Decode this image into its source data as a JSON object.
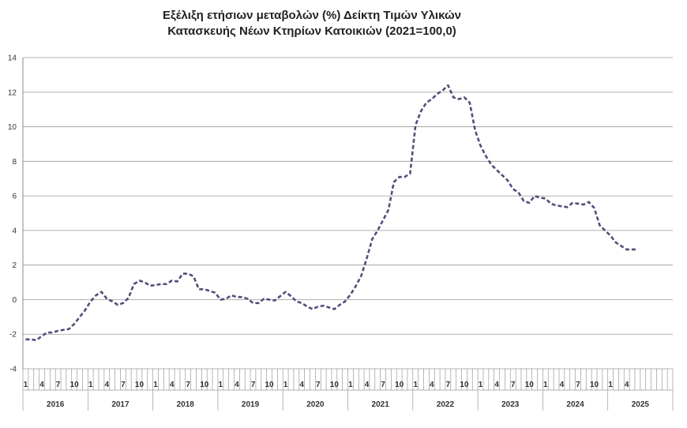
{
  "chart_data": {
    "type": "line",
    "title_line1": "Εξέλιξη ετήσιων μεταβολών (%) Δείκτη Τιμών Υλικών",
    "title_line2": "Κατασκευής Νέων Κτηρίων Κατοικιών (2021=100,0)",
    "ylim": [
      -4,
      14
    ],
    "yticks": [
      -4,
      -2,
      0,
      2,
      4,
      6,
      8,
      10,
      12,
      14
    ],
    "grid": true,
    "legend": "none",
    "line_color": "#5a4a7a",
    "line_style": "dashed",
    "years": [
      "2016",
      "2017",
      "2018",
      "2019",
      "2020",
      "2021",
      "2022",
      "2023",
      "2024",
      "2025"
    ],
    "month_tick_labels": [
      "1",
      "4",
      "7",
      "10"
    ],
    "start": "2016-01",
    "series": [
      {
        "values": [
          -2.3,
          -2.3,
          -2.35,
          -2.1,
          -1.9,
          -1.9,
          -1.8,
          -1.75,
          -1.7,
          -1.4,
          -1.0,
          -0.6,
          -0.1,
          0.25,
          0.45,
          0.05,
          -0.1,
          -0.3,
          -0.2,
          0.1,
          0.9,
          1.1,
          1.0,
          0.8,
          0.85,
          0.9,
          0.9,
          1.1,
          1.05,
          1.5,
          1.5,
          1.35,
          0.6,
          0.6,
          0.5,
          0.4,
          0.0,
          0.05,
          0.25,
          0.15,
          0.15,
          0.05,
          -0.2,
          -0.2,
          0.05,
          0.0,
          -0.05,
          0.2,
          0.45,
          0.2,
          -0.1,
          -0.2,
          -0.4,
          -0.55,
          -0.4,
          -0.35,
          -0.45,
          -0.55,
          -0.3,
          -0.1,
          0.3,
          0.8,
          1.4,
          2.4,
          3.5,
          4.0,
          4.6,
          5.2,
          6.8,
          7.1,
          7.1,
          7.3,
          10.1,
          10.9,
          11.4,
          11.6,
          11.9,
          12.1,
          12.4,
          11.7,
          11.6,
          11.7,
          11.4,
          9.8,
          8.9,
          8.3,
          7.8,
          7.5,
          7.2,
          6.9,
          6.4,
          6.2,
          5.7,
          5.6,
          6.0,
          5.9,
          5.85,
          5.55,
          5.45,
          5.4,
          5.35,
          5.6,
          5.55,
          5.5,
          5.65,
          5.3,
          4.3,
          4.0,
          3.7,
          3.3,
          3.1,
          2.9,
          2.9,
          2.9
        ]
      }
    ]
  }
}
